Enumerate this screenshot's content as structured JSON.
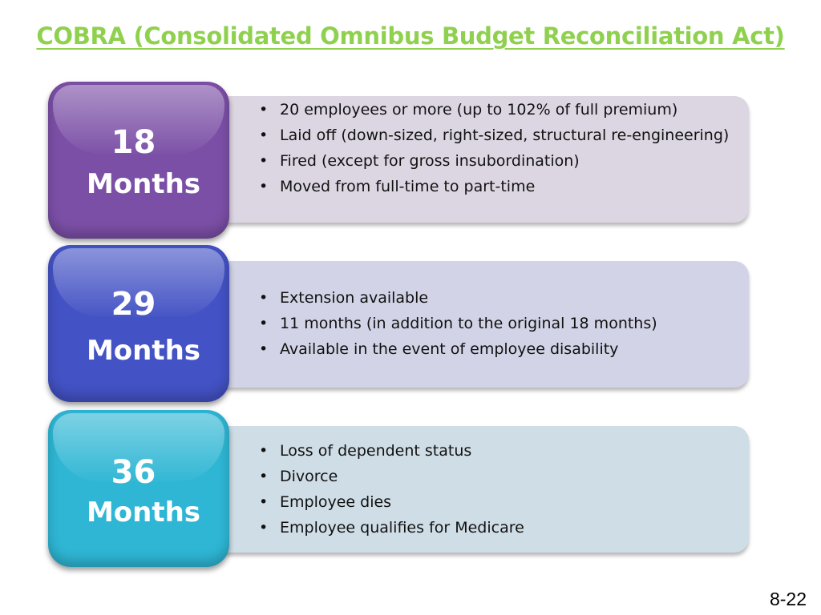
{
  "title": "COBRA (Consolidated Omnibus Budget Reconciliation Act)",
  "slide_number": "8-22",
  "colors": {
    "title": "#8fd14f",
    "badge_1": "#7b4fa6",
    "badge_2": "#4352c4",
    "badge_3": "#2eb6d4",
    "box_1": "#dcd6e2",
    "box_2": "#d2d3e6",
    "box_3": "#cfdde6"
  },
  "rows": [
    {
      "number": "18",
      "unit": "Months",
      "bullets": [
        "20 employees or more (up to 102% of full premium)",
        "Laid off (down-sized, right-sized, structural re-engineering)",
        "Fired (except for gross insubordination)",
        "Moved from full-time to part-time"
      ]
    },
    {
      "number": "29",
      "unit": "Months",
      "bullets": [
        "Extension available",
        "11 months (in addition to the original 18 months)",
        "Available in the event of employee disability"
      ]
    },
    {
      "number": "36",
      "unit": "Months",
      "bullets": [
        "Loss of dependent status",
        "Divorce",
        "Employee dies",
        "Employee qualifies for Medicare"
      ]
    }
  ]
}
